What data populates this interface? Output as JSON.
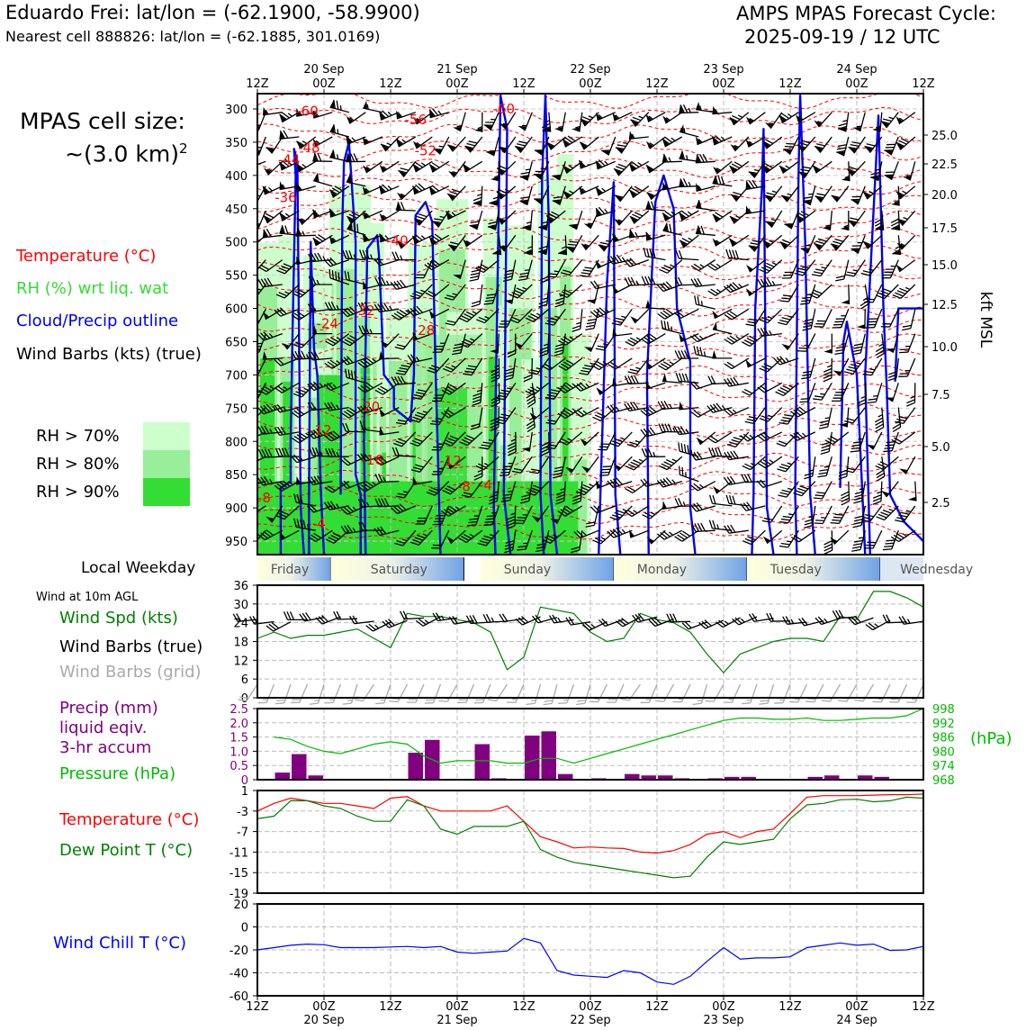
{
  "header": {
    "station_title": "Eduardo Frei: lat/lon = (-62.1900, -58.9900)",
    "nearest_cell": "Nearest cell 888826: lat/lon = (-62.1885, 301.0169)",
    "model_title": "AMPS MPAS Forecast Cycle:",
    "cycle": "2025-09-19 / 12 UTC"
  },
  "colors": {
    "temperature": "#ff0000",
    "rh_label": "#33dd33",
    "rh70": "#ccffcc",
    "rh80": "#99ee99",
    "rh90": "#33dd33",
    "cloud": "#0000ee",
    "wind_speed": "#008000",
    "precip": "#800080",
    "pressure": "#00bb00",
    "dewpoint": "#008000",
    "wind_chill": "#0000ff",
    "grid_barb": "#aaaaaa"
  },
  "left_panel": {
    "cell_size_l1": "MPAS cell size:",
    "cell_size_l2": "~(3.0 km)",
    "cell_size_sup": "2",
    "legend_temp": "Temperature (°C)",
    "legend_rh": "RH (%) wrt liq. wat",
    "legend_cloud": "Cloud/Precip outline",
    "legend_wind": "Wind Barbs (kts) (true)",
    "rh70": "RH > 70%",
    "rh80": "RH > 80%",
    "rh90": "RH > 90%",
    "local_weekday": "Local Weekday",
    "wind10m": "Wind at 10m AGL",
    "wind_spd": "Wind Spd (kts)",
    "wind_barbs_true": "Wind Barbs (true)",
    "wind_barbs_grid": "Wind Barbs (grid)",
    "precip_l1": "Precip (mm)",
    "precip_l2": "liquid eqiv.",
    "precip_l3": "3-hr accum",
    "pressure": "Pressure (hPa)",
    "temperature": "Temperature (°C)",
    "dewpoint": "Dew Point T (°C)",
    "wind_chill": "Wind Chill T (°C)"
  },
  "time_axis": {
    "ticks": [
      "12Z",
      "00Z",
      "12Z",
      "00Z",
      "12Z",
      "00Z",
      "12Z",
      "00Z",
      "12Z",
      "00Z",
      "12Z"
    ],
    "dates": [
      "20 Sep",
      "21 Sep",
      "22 Sep",
      "23 Sep",
      "24 Sep"
    ],
    "weekdays": [
      "Friday",
      "Saturday",
      "Sunday",
      "Monday",
      "Tuesday",
      "Wednesday"
    ]
  },
  "chart_data": [
    {
      "type": "heatmap",
      "ylabel": "kft MSL",
      "y_levels": [
        "300",
        "350",
        "400",
        "450",
        "500",
        "550",
        "600",
        "650",
        "700",
        "750",
        "800",
        "850",
        "900",
        "950"
      ],
      "right_axis": [
        "25.0",
        "22.5",
        "20.0",
        "17.5",
        "15.0",
        "12.5",
        "10.0",
        "7.5",
        "5.0",
        "2.5"
      ],
      "temp_labels": [
        {
          "text": "-60",
          "t": 3.0,
          "p": 310
        },
        {
          "text": "-56",
          "t": 9.5,
          "p": 323
        },
        {
          "text": "-60",
          "t": 14.8,
          "p": 307
        },
        {
          "text": "-48",
          "t": 3.1,
          "p": 365
        },
        {
          "text": "-52",
          "t": 10.1,
          "p": 370
        },
        {
          "text": "-44",
          "t": 1.9,
          "p": 383
        },
        {
          "text": "-36",
          "t": 1.7,
          "p": 440
        },
        {
          "text": "-40",
          "t": 8.4,
          "p": 505
        },
        {
          "text": "-32",
          "t": 6.4,
          "p": 610
        },
        {
          "text": "-24",
          "t": 4.2,
          "p": 630
        },
        {
          "text": "-28",
          "t": 10.0,
          "p": 640
        },
        {
          "text": "-20",
          "t": 6.7,
          "p": 755
        },
        {
          "text": "-12",
          "t": 3.8,
          "p": 790
        },
        {
          "text": "-16",
          "t": 6.9,
          "p": 835
        },
        {
          "text": "-12",
          "t": 11.6,
          "p": 836
        },
        {
          "text": "-8",
          "t": 0.4,
          "p": 892
        },
        {
          "text": "-8",
          "t": 12.4,
          "p": 875
        },
        {
          "text": "-4",
          "t": 3.7,
          "p": 930
        },
        {
          "text": "-4",
          "t": 13.7,
          "p": 873
        }
      ]
    },
    {
      "type": "line",
      "ylabel": "Wind Spd (kts)",
      "ylim": [
        0,
        36
      ],
      "yticks": [
        "0",
        "6",
        "12",
        "18",
        "24",
        "30",
        "36"
      ],
      "x": [
        0,
        1,
        2,
        3,
        4,
        5,
        6,
        7,
        8,
        9,
        10,
        11,
        12,
        13,
        14,
        15,
        16,
        17,
        18,
        19,
        20,
        21,
        22,
        23,
        24,
        25,
        26,
        27,
        28,
        29,
        30,
        31,
        32,
        33,
        34,
        35,
        36,
        37,
        38,
        39,
        40
      ],
      "series": [
        {
          "name": "Wind Spd (kts)",
          "values": [
            19,
            21,
            19,
            20,
            20,
            21,
            22,
            19,
            16,
            27,
            26,
            26,
            25,
            24,
            21,
            9,
            13,
            29,
            28,
            27,
            21,
            18,
            19,
            27,
            25,
            24,
            21,
            14,
            8,
            14,
            16,
            18,
            19,
            19,
            18,
            26,
            25,
            34,
            34,
            32,
            29
          ]
        }
      ]
    },
    {
      "type": "bar",
      "ylim": [
        0,
        2.5
      ],
      "yticks": [
        "0",
        "0.5",
        "1.0",
        "1.5",
        "2.0",
        "2.5"
      ],
      "y2ticks": [
        "968",
        "974",
        "980",
        "986",
        "992",
        "998"
      ],
      "y2label": "(hPa)",
      "x": [
        1,
        2,
        3,
        4,
        5,
        6,
        7,
        8,
        9,
        10,
        11,
        12,
        13,
        14,
        15,
        16,
        17,
        18,
        19,
        20,
        21,
        22,
        23,
        24,
        25,
        26,
        27,
        28,
        29,
        30,
        31,
        32,
        33,
        34,
        35,
        36,
        37,
        38,
        39,
        40
      ],
      "series": [
        {
          "name": "Precip (mm)",
          "values": [
            0,
            0.25,
            0.9,
            0.15,
            0,
            0,
            0,
            0,
            0,
            0.95,
            1.4,
            0,
            0,
            1.25,
            0.05,
            0,
            1.55,
            1.7,
            0.2,
            0,
            0.05,
            0,
            0.2,
            0.15,
            0.15,
            0.05,
            0,
            0.05,
            0.1,
            0.1,
            0,
            0,
            0,
            0.1,
            0.15,
            0,
            0.15,
            0.1,
            0,
            0
          ]
        },
        {
          "name": "Pressure (hPa)",
          "values": [
            986,
            985,
            982,
            980,
            979,
            981,
            983,
            984,
            983,
            978,
            975,
            976,
            976,
            976,
            975,
            975,
            977,
            977,
            975,
            977,
            979,
            981,
            983,
            985,
            987,
            989,
            991,
            993,
            994,
            994,
            993.5,
            993.5,
            994,
            993,
            993,
            993.5,
            994,
            994,
            995,
            998
          ]
        }
      ]
    },
    {
      "type": "line",
      "ylim": [
        -19,
        1
      ],
      "yticks": [
        "-19",
        "-15",
        "-11",
        "-7",
        "-3",
        "1"
      ],
      "x": [
        0,
        1,
        2,
        3,
        4,
        5,
        6,
        7,
        8,
        9,
        10,
        11,
        12,
        13,
        14,
        15,
        16,
        17,
        18,
        19,
        20,
        21,
        22,
        23,
        24,
        25,
        26,
        27,
        28,
        29,
        30,
        31,
        32,
        33,
        34,
        35,
        36,
        37,
        38,
        39,
        40
      ],
      "series": [
        {
          "name": "Temperature (°C)",
          "values": [
            -3,
            -1.5,
            -0.5,
            -1,
            -1.5,
            -1.5,
            -2,
            -2.5,
            -0.5,
            -0.2,
            -2,
            -3,
            -3,
            -3,
            -3,
            -2,
            -5,
            -8,
            -9,
            -10.2,
            -10,
            -10.2,
            -10.3,
            -11,
            -11.2,
            -10.7,
            -9.5,
            -7.5,
            -7,
            -8.2,
            -7,
            -6.5,
            -3.5,
            -0.3,
            0,
            0,
            0,
            0.1,
            0.2,
            0.2,
            0.3
          ]
        },
        {
          "name": "Dew Point T (°C)",
          "values": [
            -4.5,
            -4,
            -1,
            -1,
            -2,
            -2.5,
            -4,
            -5,
            -5,
            -0.8,
            -2,
            -6.5,
            -7.5,
            -6,
            -6,
            -6,
            -5,
            -10.5,
            -12,
            -13,
            -13.5,
            -14,
            -14.5,
            -15,
            -15.5,
            -16,
            -15.7,
            -12,
            -9,
            -9.5,
            -9,
            -8.5,
            -4.5,
            -1.8,
            -1.5,
            -0.8,
            -0.7,
            -1.2,
            -1,
            -0.3,
            -0.5
          ]
        }
      ]
    },
    {
      "type": "line",
      "ylim": [
        -60,
        20
      ],
      "yticks": [
        "-60",
        "-40",
        "-20",
        "0",
        "20"
      ],
      "x": [
        0,
        1,
        2,
        3,
        4,
        5,
        6,
        7,
        8,
        9,
        10,
        11,
        12,
        13,
        14,
        15,
        16,
        17,
        18,
        19,
        20,
        21,
        22,
        23,
        24,
        25,
        26,
        27,
        28,
        29,
        30,
        31,
        32,
        33,
        34,
        35,
        36,
        37,
        38,
        39,
        40
      ],
      "series": [
        {
          "name": "Wind Chill T (°C)",
          "values": [
            -20,
            -18,
            -16,
            -15,
            -15.5,
            -18,
            -18,
            -18,
            -17.5,
            -17,
            -18,
            -17,
            -22,
            -23,
            -22,
            -21,
            -10,
            -14,
            -38,
            -42,
            -43,
            -44,
            -38,
            -40,
            -48,
            -50,
            -43,
            -30,
            -18,
            -28,
            -27,
            -27,
            -26,
            -18,
            -16,
            -14,
            -16,
            -15,
            -20.5,
            -20,
            -17
          ]
        }
      ]
    }
  ]
}
